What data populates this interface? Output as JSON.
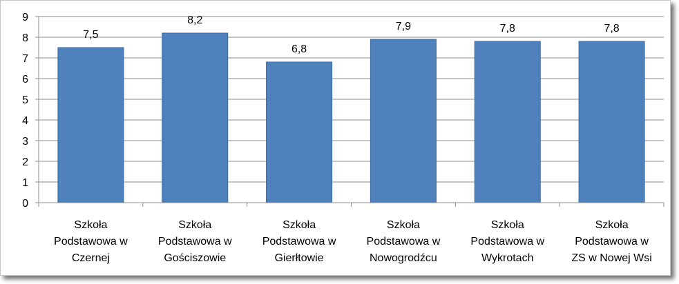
{
  "chart_data": {
    "type": "bar",
    "title": "",
    "xlabel": "",
    "ylabel": "",
    "categories": [
      [
        "Szkoła",
        "Podstawowa w",
        "Czernej"
      ],
      [
        "Szkoła",
        "Podstawowa w",
        "Gościszowie"
      ],
      [
        "Szkoła",
        "Podstawowa w",
        "Gierłtowie"
      ],
      [
        "Szkoła",
        "Podstawowa w",
        "Nowogrodźcu"
      ],
      [
        "Szkoła",
        "Podstawowa w",
        "Wykrotach"
      ],
      [
        "Szkoła",
        "Podstawowa w",
        "ZS w Nowej Wsi"
      ]
    ],
    "values": [
      7.5,
      8.2,
      6.8,
      7.9,
      7.8,
      7.8
    ],
    "data_labels": [
      "7,5",
      "8,2",
      "6,8",
      "7,9",
      "7,8",
      "7,8"
    ],
    "ylim": [
      0,
      9
    ],
    "yticks": [
      "0",
      "1",
      "2",
      "3",
      "4",
      "5",
      "6",
      "7",
      "8",
      "9"
    ],
    "grid": true,
    "legend": "none",
    "bar_color": "#4f81bd",
    "bar_edge_color": "#3a6aa3",
    "grid_color": "#8c8c8c"
  }
}
